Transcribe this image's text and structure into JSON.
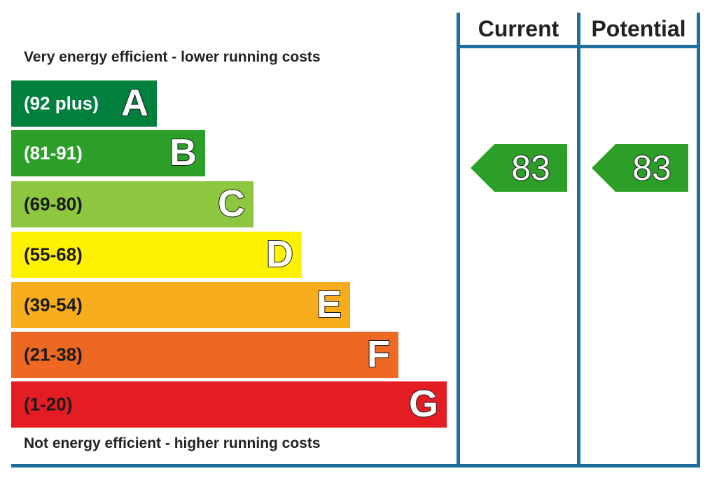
{
  "chart_data": {
    "type": "bar",
    "title": "",
    "top_caption": "Very energy efficient - lower running costs",
    "bottom_caption": "Not energy efficient - higher running costs",
    "bands": [
      {
        "letter": "A",
        "range": "(92 plus)",
        "color": "#007f3d",
        "text_color": "#ffffff"
      },
      {
        "letter": "B",
        "range": "(81-91)",
        "color": "#2c9f29",
        "text_color": "#ffffff"
      },
      {
        "letter": "C",
        "range": "(69-80)",
        "color": "#8dc63f",
        "text_color": "#1a1a1a"
      },
      {
        "letter": "D",
        "range": "(55-68)",
        "color": "#fff200",
        "text_color": "#1a1a1a"
      },
      {
        "letter": "E",
        "range": "(39-54)",
        "color": "#f7ac1b",
        "text_color": "#1a1a1a"
      },
      {
        "letter": "F",
        "range": "(21-38)",
        "color": "#ed6823",
        "text_color": "#1a1a1a"
      },
      {
        "letter": "G",
        "range": "(1-20)",
        "color": "#e31d23",
        "text_color": "#1a1a1a"
      }
    ],
    "columns": [
      {
        "name": "Current",
        "value": 83,
        "band": "B",
        "color": "#2c9f29"
      },
      {
        "name": "Potential",
        "value": 83,
        "band": "B",
        "color": "#2c9f29"
      }
    ],
    "frame_color": "#1f6e9c"
  }
}
